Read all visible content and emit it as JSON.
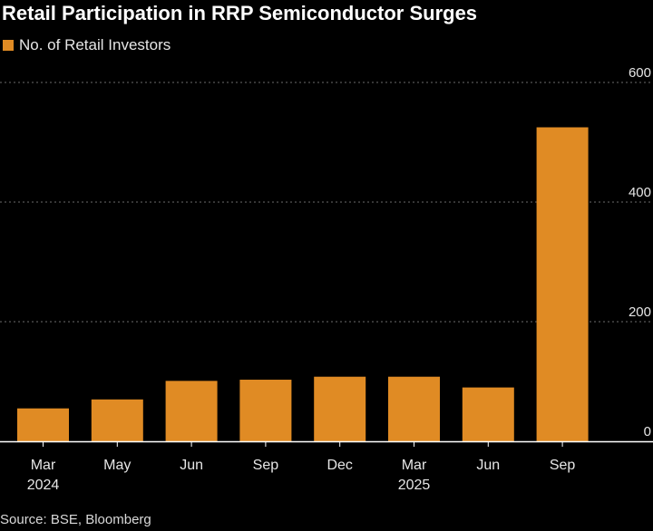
{
  "title": "Retail Participation in RRP Semiconductor Surges",
  "source": "Source: BSE, Bloomberg",
  "colors": {
    "bar": "#e08b24",
    "background": "#000000",
    "grid": "#6b6b6b",
    "text": "#e6e6e6"
  },
  "chart_data": {
    "type": "bar",
    "categories": [
      "Mar",
      "May",
      "Jun",
      "Sep",
      "Dec",
      "Mar",
      "Jun",
      "Sep"
    ],
    "year_labels": [
      "2024",
      "",
      "",
      "",
      "",
      "2025",
      "",
      ""
    ],
    "series": [
      {
        "name": "No. of Retail Investors",
        "values": [
          55,
          70,
          101,
          103,
          108,
          108,
          90,
          525
        ]
      }
    ],
    "ylim": [
      0,
      600
    ],
    "yticks": [
      "0",
      "200",
      "400",
      "600"
    ],
    "xlabel": "",
    "ylabel": "",
    "grid": true,
    "y_axis_side": "right",
    "legend_position": "top-left"
  }
}
